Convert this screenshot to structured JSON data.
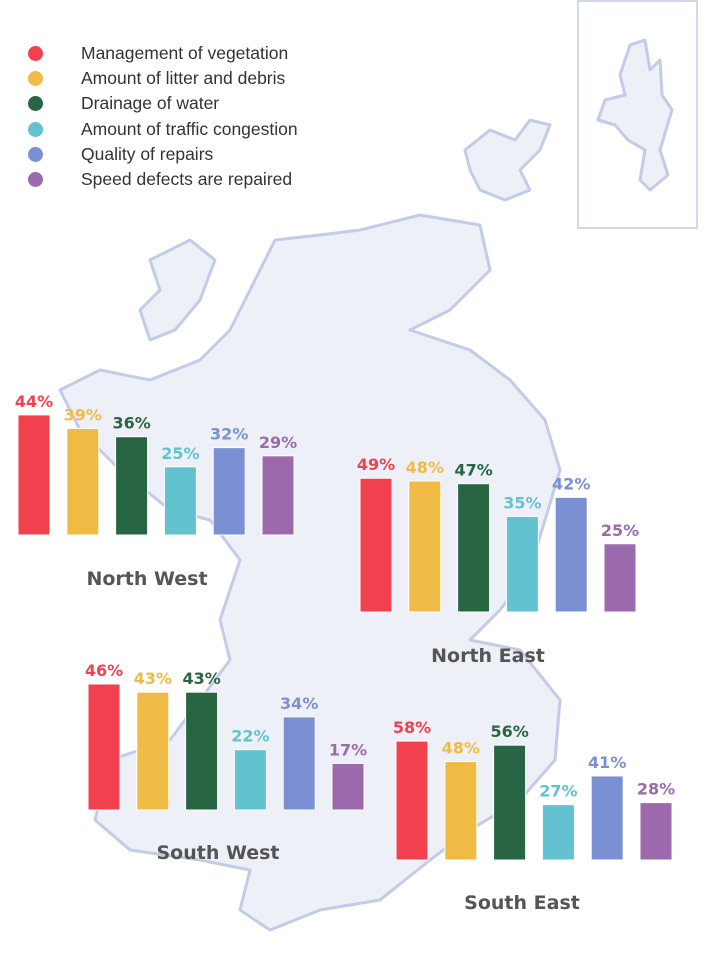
{
  "chart_data": {
    "type": "bar",
    "legend_placement": "top-left",
    "categories": [
      "Management of vegetation",
      "Amount of litter and debris",
      "Drainage of water",
      "Amount of traffic congestion",
      "Quality of repairs",
      "Speed defects are repaired"
    ],
    "colors": [
      "#f1414f",
      "#f0bb44",
      "#286643",
      "#62c2d0",
      "#7a90d2",
      "#9d69ad"
    ],
    "value_suffix": "%",
    "panels": [
      {
        "title": "North West",
        "values": [
          44,
          39,
          36,
          25,
          32,
          29
        ]
      },
      {
        "title": "North East",
        "values": [
          49,
          48,
          47,
          35,
          42,
          25
        ]
      },
      {
        "title": "South West",
        "values": [
          46,
          43,
          43,
          22,
          34,
          17
        ]
      },
      {
        "title": "South East",
        "values": [
          58,
          48,
          56,
          27,
          41,
          28
        ]
      }
    ]
  },
  "map": {
    "fill": "#eef0f8",
    "stroke": "#c3cbe8"
  }
}
